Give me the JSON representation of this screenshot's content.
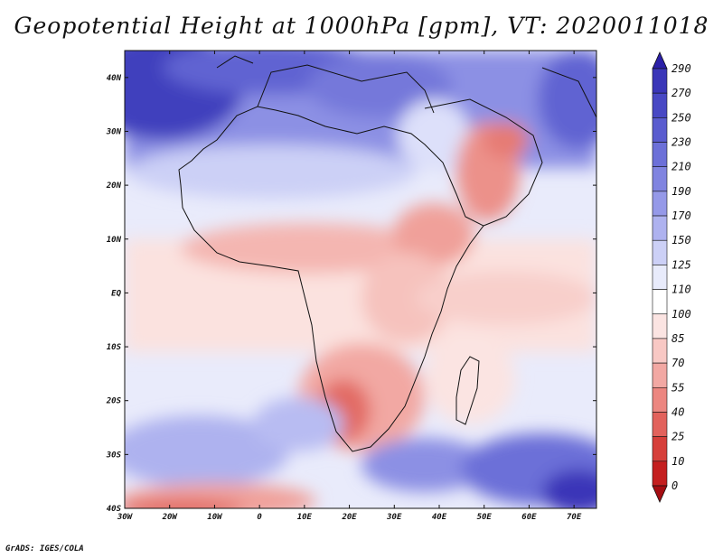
{
  "title": "Geopotential Height at 1000hPa [gpm], VT: 2020011018",
  "footer": "GrADS: IGES/COLA",
  "map": {
    "lon_range": [
      -30,
      75
    ],
    "lat_range": [
      -40,
      45
    ],
    "lon_ticks": [
      {
        "value": -30,
        "label": "30W"
      },
      {
        "value": -20,
        "label": "20W"
      },
      {
        "value": -10,
        "label": "10W"
      },
      {
        "value": 0,
        "label": "0"
      },
      {
        "value": 10,
        "label": "10E"
      },
      {
        "value": 20,
        "label": "20E"
      },
      {
        "value": 30,
        "label": "30E"
      },
      {
        "value": 40,
        "label": "40E"
      },
      {
        "value": 50,
        "label": "50E"
      },
      {
        "value": 60,
        "label": "60E"
      },
      {
        "value": 70,
        "label": "70E"
      }
    ],
    "lat_ticks": [
      {
        "value": 40,
        "label": "40N"
      },
      {
        "value": 30,
        "label": "30N"
      },
      {
        "value": 20,
        "label": "20N"
      },
      {
        "value": 10,
        "label": "10N"
      },
      {
        "value": 0,
        "label": "EQ"
      },
      {
        "value": -10,
        "label": "10S"
      },
      {
        "value": -20,
        "label": "20S"
      },
      {
        "value": -30,
        "label": "30S"
      },
      {
        "value": -40,
        "label": "40S"
      }
    ]
  },
  "colorbar": {
    "labels": [
      "290",
      "270",
      "250",
      "230",
      "210",
      "190",
      "170",
      "150",
      "125",
      "110",
      "100",
      "85",
      "70",
      "55",
      "40",
      "25",
      "10",
      "0"
    ],
    "colors": [
      "#2b20a8",
      "#3a36b8",
      "#4848c4",
      "#5a5ccf",
      "#6c70d8",
      "#8084e0",
      "#9599e8",
      "#aeb2ef",
      "#ccd0f6",
      "#e8ebfb",
      "#ffffff",
      "#fbe4e2",
      "#f8c8c4",
      "#f2a8a3",
      "#ec8680",
      "#e2625c",
      "#d63f3a",
      "#c41f1f",
      "#a50d12"
    ]
  }
}
